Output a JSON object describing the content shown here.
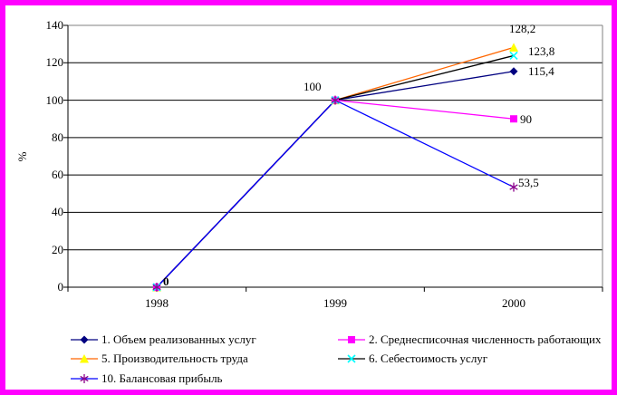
{
  "chart_data": {
    "type": "line",
    "title": "",
    "categories": [
      "1998",
      "1999",
      "2000"
    ],
    "series": [
      {
        "name": "1. Объем реализованных услуг",
        "values": [
          0,
          100,
          115.4
        ],
        "color": "#000080",
        "marker": "diamond",
        "marker_color": "#000080"
      },
      {
        "name": "2. Среднесписочная численность работающих",
        "values": [
          0,
          100,
          90
        ],
        "color": "#FF00FF",
        "marker": "square",
        "marker_color": "#FF00FF"
      },
      {
        "name": "5. Производительность труда",
        "values": [
          0,
          100,
          128.2
        ],
        "color": "#FF6600",
        "marker": "triangle",
        "marker_color": "#FFFF00"
      },
      {
        "name": "6. Себестоимость услуг",
        "values": [
          0,
          100,
          123.8
        ],
        "color": "#000000",
        "marker": "x",
        "marker_color": "#00FFFF"
      },
      {
        "name": "10. Балансовая прибыль",
        "values": [
          0,
          100,
          53.5
        ],
        "color": "#0000FF",
        "marker": "asterisk",
        "marker_color": "#8B008B"
      }
    ],
    "xlabel": "",
    "ylabel": "%",
    "ylim": [
      0,
      140
    ],
    "ytick_step": 20,
    "grid": true,
    "legend_position": "bottom"
  },
  "axis": {
    "y_ticks": [
      "140",
      "120",
      "100",
      "80",
      "60",
      "40",
      "20",
      "0"
    ],
    "x_ticks": [
      "1998",
      "1999",
      "2000"
    ],
    "y_title": "%"
  },
  "point_labels": {
    "origin_1998": "0",
    "all_1999": "100",
    "s5_2000": "128,2",
    "s6_2000": "123,8",
    "s1_2000": "115,4",
    "s2_2000": "90",
    "s10_2000": "53,5"
  },
  "legend": {
    "col_left": [
      "1. Объем реализованных услуг",
      "5. Производительность труда",
      "10. Балансовая прибыль"
    ],
    "col_right": [
      "2. Среднесписочная численность работающих",
      "6. Себестоимость услуг"
    ]
  },
  "colors": {
    "frame_border": "#FF00FF",
    "plot_border": "#808080",
    "gridline": "#000000",
    "axis_line": "#000000",
    "background": "#FFFFFF"
  }
}
